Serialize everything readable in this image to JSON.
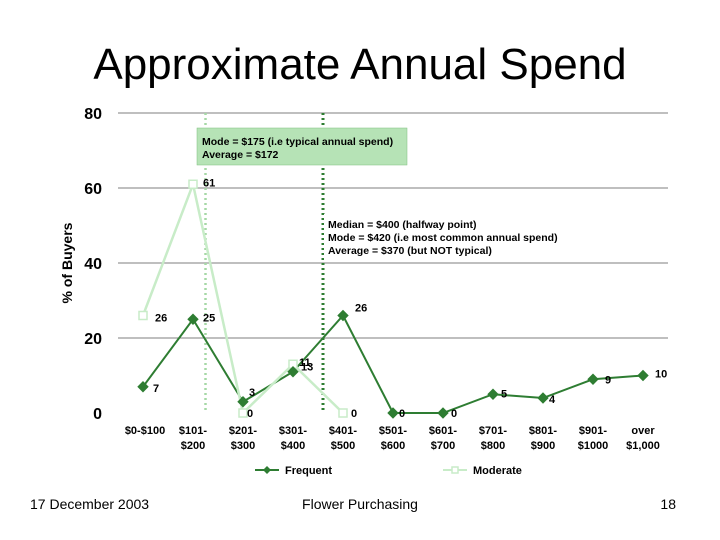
{
  "slide": {
    "title": "Approximate Annual Spend",
    "footer_date": "17 December 2003",
    "footer_center": "Flower Purchasing",
    "page_number": "18"
  },
  "chart_data": {
    "type": "line",
    "ylabel": "% of Buyers",
    "ylim": [
      0,
      80
    ],
    "yticks": [
      0,
      20,
      40,
      60,
      80
    ],
    "categories": [
      [
        "$0-$100"
      ],
      [
        "$101-",
        "$200"
      ],
      [
        "$201-",
        "$300"
      ],
      [
        "$301-",
        "$400"
      ],
      [
        "$401-",
        "$500"
      ],
      [
        "$501-",
        "$600"
      ],
      [
        "$601-",
        "$700"
      ],
      [
        "$701-",
        "$800"
      ],
      [
        "$801-",
        "$900"
      ],
      [
        "$901-",
        "$1000"
      ],
      [
        "over",
        "$1,000"
      ]
    ],
    "series": [
      {
        "name": "Frequent",
        "color": "#2e7d32",
        "marker": "diamond",
        "values": [
          7,
          25,
          3,
          11,
          26,
          0,
          0,
          5,
          4,
          9,
          10
        ],
        "labels": [
          "7",
          "25",
          "3",
          "11",
          "26",
          "0",
          "0",
          "5",
          "4",
          "9",
          "10"
        ]
      },
      {
        "name": "Moderate",
        "color": "#c8ecc8",
        "marker": "square",
        "values": [
          26,
          61,
          0,
          13,
          0,
          null,
          null,
          null,
          null,
          null,
          null
        ],
        "labels": [
          "26",
          "61",
          "0",
          "13",
          "0",
          "",
          "",
          "",
          "",
          "",
          ""
        ]
      }
    ],
    "annotations": [
      {
        "lines": [
          "Mode = $175 (i.e typical annual spend)",
          "Average = $172"
        ],
        "boxed": true,
        "box_color": "#b6e3b6"
      },
      {
        "lines": [
          "Median = $400 (halfway point)",
          "Mode = $420 (i.e most common annual spend)",
          "Average = $370 (but NOT typical)"
        ],
        "boxed": false
      }
    ],
    "reference_lines": [
      {
        "at_value": 175,
        "style": "dotted",
        "color": "#a6d8a6"
      },
      {
        "at_value": 400,
        "style": "dotted",
        "color": "#2e7d32"
      }
    ],
    "legend_position": "bottom",
    "grid": true
  }
}
